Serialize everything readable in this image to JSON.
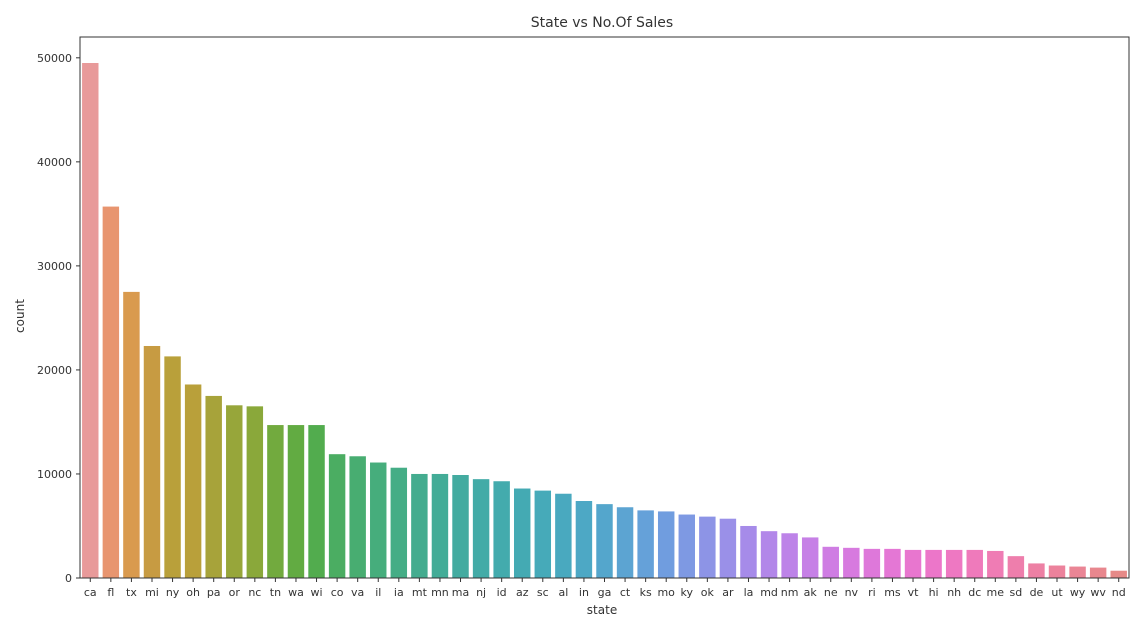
{
  "chart_data": {
    "type": "bar",
    "title": "State vs No.Of Sales",
    "xlabel": "state",
    "ylabel": "count",
    "ylim": [
      0,
      52000
    ],
    "yticks": [
      0,
      10000,
      20000,
      30000,
      40000,
      50000
    ],
    "grid": false,
    "categories": [
      "ca",
      "fl",
      "tx",
      "mi",
      "ny",
      "oh",
      "pa",
      "or",
      "nc",
      "tn",
      "wa",
      "wi",
      "co",
      "va",
      "il",
      "ia",
      "mt",
      "mn",
      "ma",
      "nj",
      "id",
      "az",
      "sc",
      "al",
      "in",
      "ga",
      "ct",
      "ks",
      "mo",
      "ky",
      "ok",
      "ar",
      "la",
      "md",
      "nm",
      "ak",
      "ne",
      "nv",
      "ri",
      "ms",
      "vt",
      "hi",
      "nh",
      "dc",
      "me",
      "sd",
      "de",
      "ut",
      "wy",
      "wv",
      "nd"
    ],
    "values": [
      49500,
      35700,
      27500,
      22300,
      21300,
      18600,
      17500,
      16600,
      16500,
      14700,
      14700,
      14700,
      11900,
      11700,
      11100,
      10600,
      10000,
      10000,
      9900,
      9500,
      9300,
      8600,
      8400,
      8100,
      7400,
      7100,
      6800,
      6500,
      6400,
      6100,
      5900,
      5700,
      5000,
      4500,
      4300,
      3900,
      3000,
      2900,
      2800,
      2800,
      2700,
      2700,
      2700,
      2700,
      2600,
      2100,
      1400,
      1200,
      1100,
      1000,
      700
    ],
    "colors": [
      "#e89a9a",
      "#e8956f",
      "#d99a4e",
      "#c79b42",
      "#b9a03a",
      "#b9a03a",
      "#a7a33a",
      "#97a63a",
      "#8aa83a",
      "#72aa3e",
      "#62ab42",
      "#52ac4e",
      "#4bad62",
      "#48ad71",
      "#46ad7c",
      "#45ad86",
      "#44ac8f",
      "#43ac97",
      "#43aba0",
      "#43aba7",
      "#43abad",
      "#44aab3",
      "#46aab9",
      "#49a9bf",
      "#4da8c5",
      "#54a6cc",
      "#5ca4d2",
      "#65a1d9",
      "#709ddf",
      "#7e99e3",
      "#8d94e6",
      "#9a90e8",
      "#a68be9",
      "#b287e9",
      "#bd83e8",
      "#c680e6",
      "#cf7de3",
      "#d77adf",
      "#de78da",
      "#e477d5",
      "#e876cf",
      "#ec76c9",
      "#ee78c2",
      "#ef7abb",
      "#ef7cb4",
      "#ee7eac",
      "#ed80a4",
      "#ec829c",
      "#ea8595",
      "#e8878e",
      "#e68a88"
    ]
  }
}
